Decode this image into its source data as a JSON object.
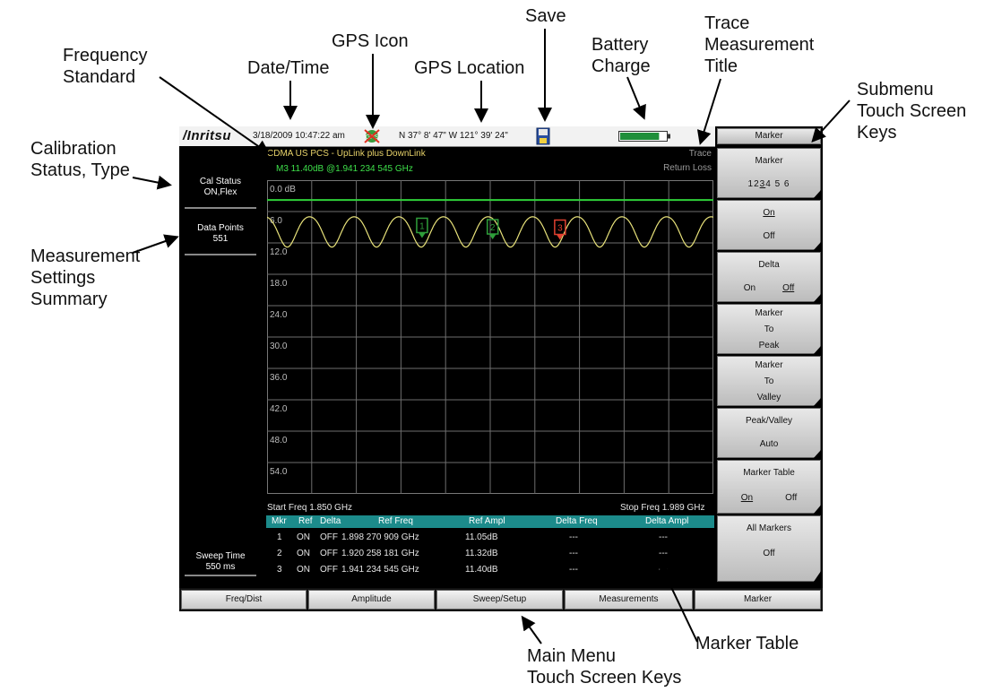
{
  "callouts": {
    "frequency_standard": "Frequency\nStandard",
    "date_time": "Date/Time",
    "gps_icon": "GPS Icon",
    "gps_location": "GPS Location",
    "save": "Save",
    "battery_charge": "Battery\nCharge",
    "trace_measurement_title": "Trace\nMeasurement\nTitle",
    "submenu_keys": "Submenu\nTouch Screen\nKeys",
    "calibration_status": "Calibration\nStatus, Type",
    "measurement_settings": "Measurement\nSettings\nSummary",
    "marker_table": "Marker Table",
    "main_menu_keys": "Main Menu\nTouch Screen Keys"
  },
  "status_bar": {
    "logo": "/Inritsu",
    "datetime": "3/18/2009 10:47:22 am",
    "gps_location": "N 37° 8' 47\" W 121° 39' 24\"",
    "battery_level": 0.85
  },
  "left_panel": {
    "cal_status_label": "Cal Status",
    "cal_status_value": "ON,Flex",
    "data_points_label": "Data Points",
    "data_points_value": "551",
    "sweep_time_label": "Sweep Time",
    "sweep_time_value": "550 ms"
  },
  "measurement": {
    "standard": "CDMA US PCS - UpLink plus DownLink",
    "marker_readout": "M3 11.40dB @1.941 234 545 GHz",
    "trace_label": "Trace",
    "trace_title": "Return Loss",
    "start_freq": "Start Freq 1.850 GHz",
    "stop_freq": "Stop Freq 1.989 GHz"
  },
  "chart_data": {
    "type": "line",
    "xlim": [
      1.85,
      1.989
    ],
    "ylim": [
      0,
      60
    ],
    "y_inverted": true,
    "y_ticks": [
      "0.0 dB",
      "6.0",
      "12.0",
      "18.0",
      "24.0",
      "30.0",
      "36.0",
      "42.0",
      "48.0",
      "54.0"
    ],
    "limit_line": 3.8,
    "trace_color": "#e8e27a",
    "limit_color": "#2fd03a",
    "markers": [
      {
        "label": "1",
        "freq": 1.898270909,
        "value": 11.05,
        "color": "#2e9e3a"
      },
      {
        "label": "2",
        "freq": 1.920258181,
        "value": 11.32,
        "color": "#2e9e3a"
      },
      {
        "label": "3",
        "freq": 1.941234545,
        "value": 11.4,
        "color": "#e04030"
      }
    ]
  },
  "marker_table": {
    "headers": [
      "Mkr",
      "Ref",
      "Delta",
      "Ref Freq",
      "Ref Ampl",
      "Delta Freq",
      "Delta Ampl"
    ],
    "rows": [
      [
        "1",
        "ON",
        "OFF",
        "1.898 270 909 GHz",
        "11.05dB",
        "---",
        "---"
      ],
      [
        "2",
        "ON",
        "OFF",
        "1.920 258 181 GHz",
        "11.32dB",
        "---",
        "---"
      ],
      [
        "3",
        "ON",
        "OFF",
        "1.941 234 545 GHz",
        "11.40dB",
        "---",
        "---"
      ]
    ]
  },
  "submenu": {
    "title": "Marker",
    "marker_select_label": "Marker",
    "marker_numbers": [
      "1",
      "2",
      "3",
      "4",
      "5",
      "6"
    ],
    "marker_active": "3",
    "on": "On",
    "off": "Off",
    "delta_label": "Delta",
    "delta_on": "On",
    "delta_off": "Off",
    "to_peak": [
      "Marker",
      "To",
      "Peak"
    ],
    "to_valley": [
      "Marker",
      "To",
      "Valley"
    ],
    "peak_valley_label": "Peak/Valley",
    "peak_valley_value": "Auto",
    "marker_table_label": "Marker Table",
    "marker_table_on": "On",
    "marker_table_off": "Off",
    "all_markers_label": "All Markers",
    "all_markers_value": "Off"
  },
  "main_menu": [
    "Freq/Dist",
    "Amplitude",
    "Sweep/Setup",
    "Measurements",
    "Marker"
  ]
}
